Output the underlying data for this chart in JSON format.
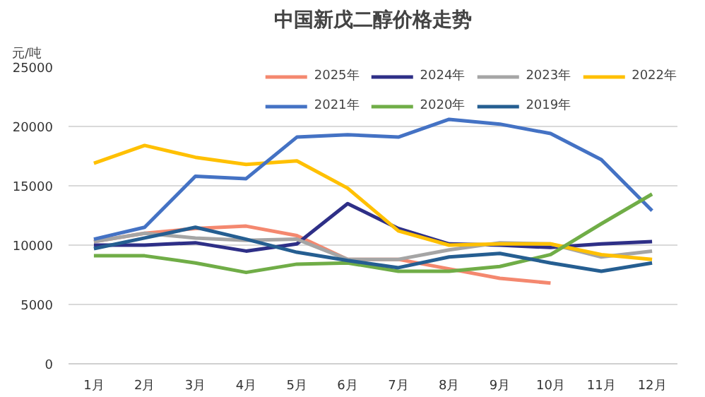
{
  "chart_data": {
    "type": "line",
    "title": "中国新戊二醇价格走势",
    "ylabel": "元/吨",
    "categories": [
      "1月",
      "2月",
      "3月",
      "4月",
      "5月",
      "6月",
      "7月",
      "8月",
      "9月",
      "10月",
      "11月",
      "12月"
    ],
    "ylim": [
      0,
      25000
    ],
    "yticks": [
      0,
      5000,
      10000,
      15000,
      20000,
      25000
    ],
    "grid": "y",
    "legend": "top right",
    "marker": "none",
    "line_style": "solid",
    "series": [
      {
        "name": "2025年",
        "color": "#f4886f",
        "values": [
          10300,
          11000,
          11400,
          11600,
          10800,
          8800,
          8800,
          8000,
          7200,
          6800,
          null,
          null
        ]
      },
      {
        "name": "2024年",
        "color": "#2e2f87",
        "values": [
          10000,
          10000,
          10200,
          9500,
          10100,
          13500,
          11400,
          10100,
          10000,
          9800,
          10100,
          10300
        ]
      },
      {
        "name": "2023年",
        "color": "#a5a5a5",
        "values": [
          10300,
          11000,
          10600,
          10400,
          10500,
          8800,
          8800,
          9600,
          10200,
          10100,
          9000,
          9500
        ]
      },
      {
        "name": "2022年",
        "color": "#ffc000",
        "values": [
          16900,
          18400,
          17400,
          16800,
          17100,
          14800,
          11200,
          10000,
          10100,
          10100,
          9200,
          8800
        ]
      },
      {
        "name": "2021年",
        "color": "#4472c4",
        "values": [
          10500,
          11500,
          15800,
          15600,
          19100,
          19300,
          19100,
          20600,
          20200,
          19400,
          17200,
          12900
        ]
      },
      {
        "name": "2020年",
        "color": "#70ad47",
        "values": [
          9100,
          9100,
          8500,
          7700,
          8400,
          8500,
          7800,
          7800,
          8200,
          9200,
          11800,
          14300
        ]
      },
      {
        "name": "2019年",
        "color": "#255e91",
        "values": [
          9700,
          10600,
          11500,
          10500,
          9400,
          8700,
          8100,
          9000,
          9300,
          8500,
          7800,
          8500
        ]
      }
    ]
  }
}
